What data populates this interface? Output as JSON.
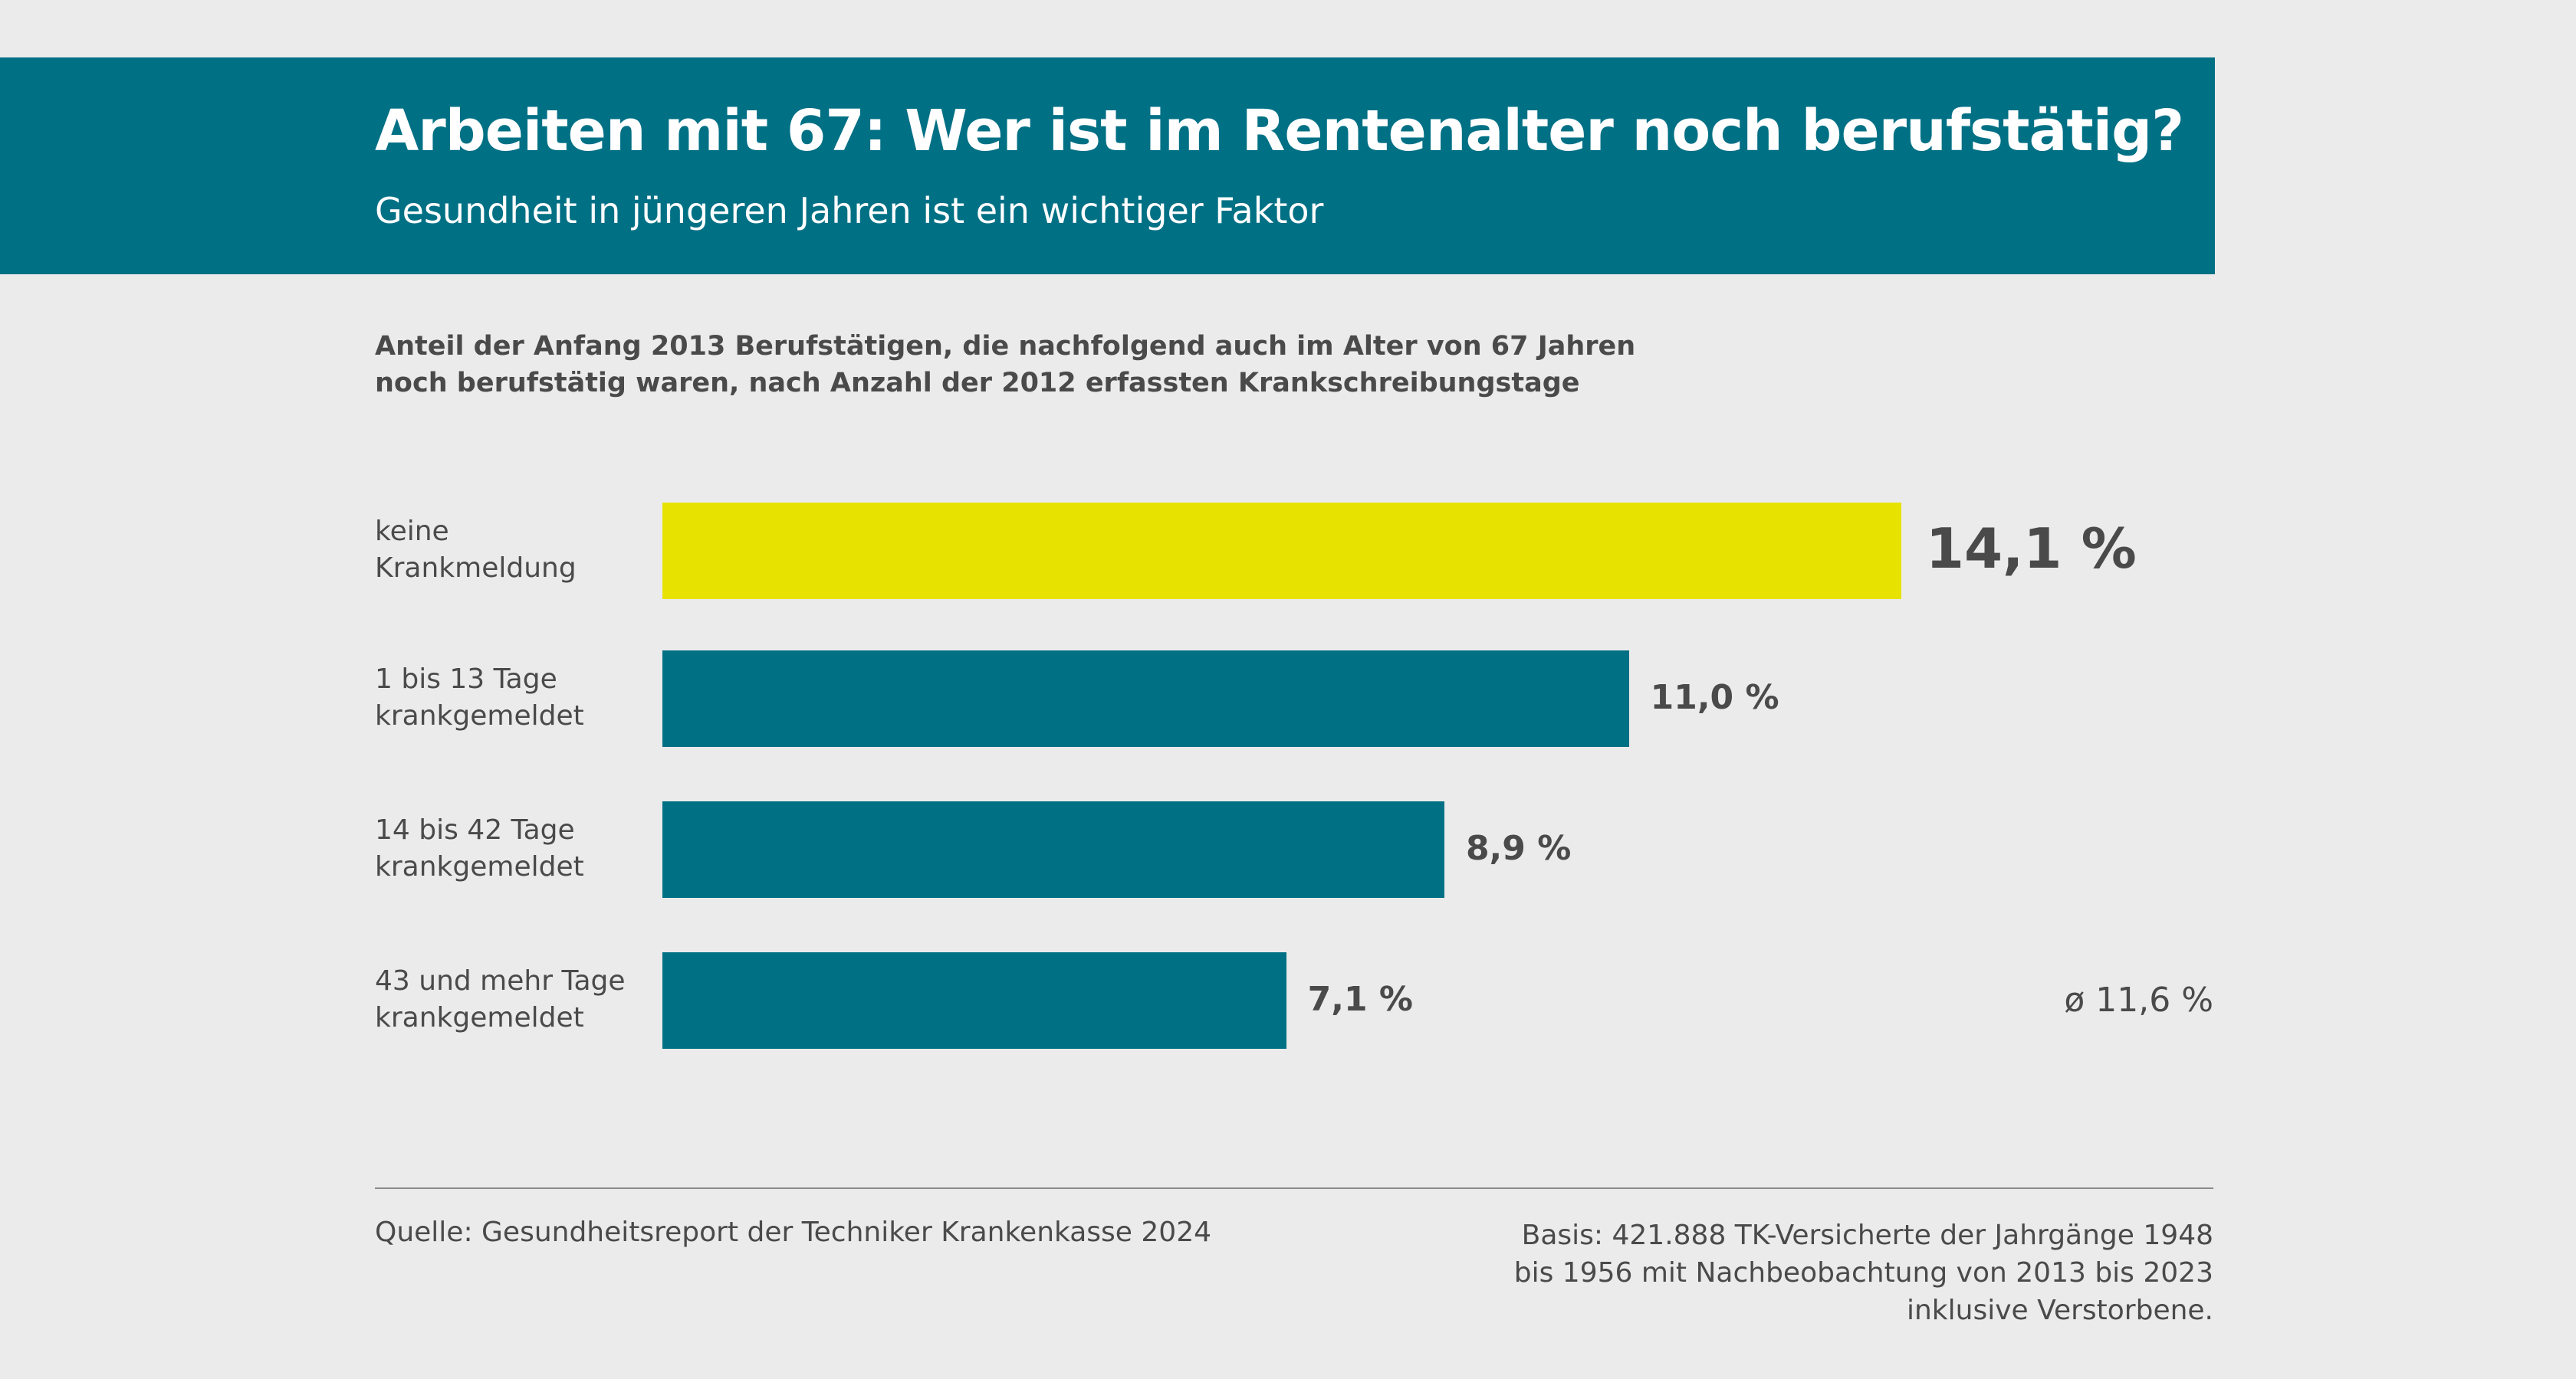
{
  "header": {
    "title": "Arbeiten mit 67: Wer ist im Rentenalter noch berufstätig?",
    "subtitle": "Gesundheit in jüngeren Jahren ist ein wichtiger Faktor"
  },
  "chart_data": {
    "type": "bar",
    "orientation": "horizontal",
    "title": "Anteil der Anfang 2013 Berufstätigen, die nachfolgend auch im Alter von 67 Jahren noch berufstätig waren, nach Anzahl der 2012 erfassten Krankschreibungstage",
    "title_lines": [
      "Anteil der Anfang 2013 Berufstätigen, die nachfolgend auch im Alter von 67 Jahren",
      "noch berufstätig waren, nach Anzahl der 2012 erfassten Krankschreibungstage"
    ],
    "categories": [
      [
        "keine",
        "Krankmeldung"
      ],
      [
        "1 bis 13 Tage",
        "krankgemeldet"
      ],
      [
        "14 bis 42 Tage",
        "krankgemeldet"
      ],
      [
        "43 und mehr Tage",
        "krankgemeldet"
      ]
    ],
    "values": [
      14.1,
      11.0,
      8.9,
      7.1
    ],
    "value_labels": [
      "14,1 %",
      "11,0 %",
      "8,9 %",
      "7,1 %"
    ],
    "colors": [
      "#e8e200",
      "#007085",
      "#007085",
      "#007085"
    ],
    "average_label": "ø 11,6 %",
    "average": 11.6,
    "unit": "%"
  },
  "footer": {
    "source": "Quelle: Gesundheitsreport der Techniker Krankenkasse 2024",
    "basis": [
      "Basis: 421.888 TK-Versicherte der Jahrgänge 1948",
      "bis 1956 mit Nachbeobachtung von 2013 bis 2023",
      "inklusive Verstorbene."
    ]
  }
}
